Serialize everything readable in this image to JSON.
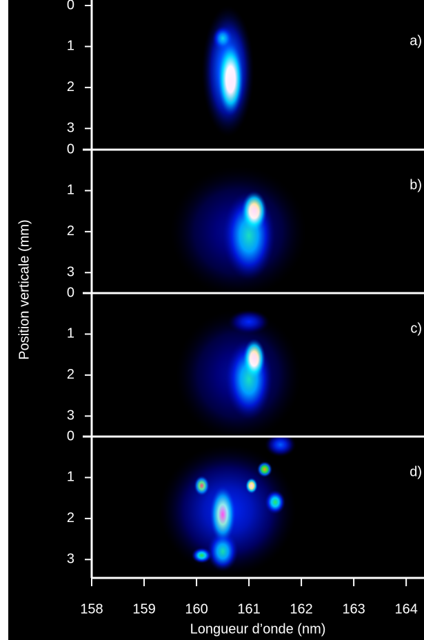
{
  "chart_data": {
    "type": "heatmap",
    "xlabel": "Longueur d’onde (nm)",
    "ylabel": "Position verticale (mm)",
    "xlim": [
      158,
      164.34
    ],
    "xticks": [
      158,
      159,
      160,
      161,
      162,
      163,
      164
    ],
    "ylim": [
      0,
      3.5
    ],
    "yticks": [
      0,
      1,
      2,
      3
    ],
    "panels": [
      {
        "label": "a)",
        "spots": {
          "x": [
            160.6,
            160.5,
            160.65
          ],
          "y": [
            1.6,
            0.8,
            1.8
          ],
          "size_x": [
            0.5,
            0.2,
            0.25
          ],
          "size_y": [
            1.6,
            0.3,
            0.9
          ],
          "intensity": [
            0.45,
            0.5,
            1
          ]
        }
      },
      {
        "label": "b)",
        "spots": {
          "x": [
            160.8,
            161.0,
            161.1
          ],
          "y": [
            2.0,
            2.1,
            1.5
          ],
          "size_x": [
            1.3,
            0.5,
            0.25
          ],
          "size_y": [
            1.6,
            1.1,
            0.5
          ],
          "intensity": [
            0.2,
            0.55,
            1
          ]
        }
      },
      {
        "label": "c)",
        "spots": {
          "x": [
            160.8,
            161.0,
            161.0,
            161.1
          ],
          "y": [
            2.0,
            0.7,
            2.1,
            1.6
          ],
          "size_x": [
            1.2,
            0.4,
            0.45,
            0.22
          ],
          "size_y": [
            1.6,
            0.3,
            1.0,
            0.5
          ],
          "intensity": [
            0.2,
            0.3,
            0.55,
            1
          ]
        }
      },
      {
        "label": "d)",
        "spots": {
          "x": [
            160.6,
            161.6,
            160.5,
            160.1,
            161.5,
            161.3,
            160.5,
            160.1,
            161.05
          ],
          "y": [
            1.8,
            0.2,
            2.8,
            2.9,
            1.6,
            0.8,
            1.9,
            1.2,
            1.2
          ],
          "size_x": [
            1.3,
            0.3,
            0.3,
            0.2,
            0.2,
            0.15,
            0.25,
            0.15,
            0.12
          ],
          "size_y": [
            1.6,
            0.3,
            0.5,
            0.2,
            0.3,
            0.2,
            0.7,
            0.25,
            0.2
          ],
          "intensity": [
            0.3,
            0.35,
            0.55,
            0.6,
            0.6,
            0.8,
            0.9,
            0.85,
            1
          ]
        }
      }
    ]
  }
}
